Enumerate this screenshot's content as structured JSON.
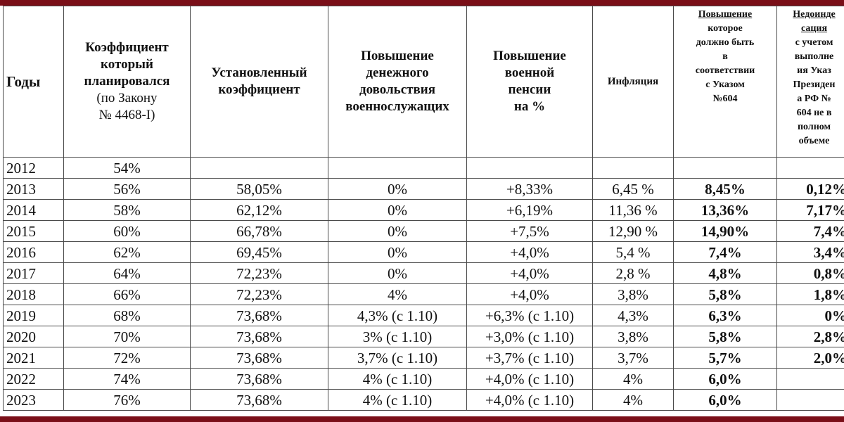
{
  "columns": {
    "year": "Годы",
    "planned": [
      "Коэффициент",
      "который",
      "планировался",
      "(по Закону",
      "№ 4468-I)"
    ],
    "set": [
      "Установленный",
      "коэффициент"
    ],
    "allowance": [
      "Повышение",
      "денежного",
      "довольствия",
      "военнослужащих"
    ],
    "pension": [
      "Повышение",
      "военной",
      "пенсии",
      "на %"
    ],
    "inflation": "Инфляция",
    "decree": [
      "Повышение",
      "которое",
      "должно быть",
      "в",
      "соответствии",
      "с Указом",
      "№604"
    ],
    "underindex": [
      "Недоинде",
      "сация",
      "с учетом",
      "выполне",
      "ия Указ",
      "Президен",
      "а РФ №",
      "604 не в",
      "полном",
      "объеме"
    ]
  },
  "rows": [
    {
      "year": "2012",
      "planned": "54%",
      "set": "",
      "allowance": "",
      "pension": "",
      "inflation": "",
      "decree": "",
      "underindex": ""
    },
    {
      "year": "2013",
      "planned": "56%",
      "set": "58,05%",
      "allowance": "0%",
      "pension": "+8,33%",
      "inflation": "6,45 %",
      "decree": "8,45%",
      "underindex": "0,12%"
    },
    {
      "year": "2014",
      "planned": "58%",
      "set": "62,12%",
      "allowance": "0%",
      "pension": "+6,19%",
      "inflation": "11,36 %",
      "decree": "13,36%",
      "underindex": "7,17%"
    },
    {
      "year": "2015",
      "planned": "60%",
      "set": "66,78%",
      "allowance": "0%",
      "pension": "+7,5%",
      "inflation": "12,90 %",
      "decree": "14,90%",
      "underindex": "7,4%"
    },
    {
      "year": "2016",
      "planned": "62%",
      "set": "69,45%",
      "allowance": "0%",
      "pension": "+4,0%",
      "inflation": "5,4 %",
      "decree": "7,4%",
      "underindex": "3,4%"
    },
    {
      "year": "2017",
      "planned": "64%",
      "set": "72,23%",
      "allowance": "0%",
      "pension": "+4,0%",
      "inflation": "2,8 %",
      "decree": "4,8%",
      "underindex": "0,8%"
    },
    {
      "year": "2018",
      "planned": "66%",
      "set": "72,23%",
      "allowance": "4%",
      "pension": "+4,0%",
      "inflation": "3,8%",
      "decree": "5,8%",
      "underindex": "1,8%"
    },
    {
      "year": "2019",
      "planned": "68%",
      "set": "73,68%",
      "allowance": "4,3% (с 1.10)",
      "pension": "+6,3% (с 1.10)",
      "inflation": "4,3%",
      "decree": "6,3%",
      "underindex": "0%"
    },
    {
      "year": "2020",
      "planned": "70%",
      "set": "73,68%",
      "allowance": "3% (с 1.10)",
      "pension": "+3,0% (с 1.10)",
      "inflation": "3,8%",
      "decree": "5,8%",
      "underindex": "2,8%"
    },
    {
      "year": "2021",
      "planned": "72%",
      "set": "73,68%",
      "allowance": "3,7% (с 1.10)",
      "pension": "+3,7% (с 1.10)",
      "inflation": "3,7%",
      "decree": "5,7%",
      "underindex": "2,0%"
    },
    {
      "year": "2022",
      "planned": "74%",
      "set": "73,68%",
      "allowance": "4% (с 1.10)",
      "pension": "+4,0% (с 1.10)",
      "inflation": "4%",
      "decree": "6,0%",
      "underindex": ""
    },
    {
      "year": "2023",
      "planned": "76%",
      "set": "73,68%",
      "allowance": "4% (с 1.10)",
      "pension": "+4,0% (с 1.10)",
      "inflation": "4%",
      "decree": "6,0%",
      "underindex": ""
    }
  ]
}
